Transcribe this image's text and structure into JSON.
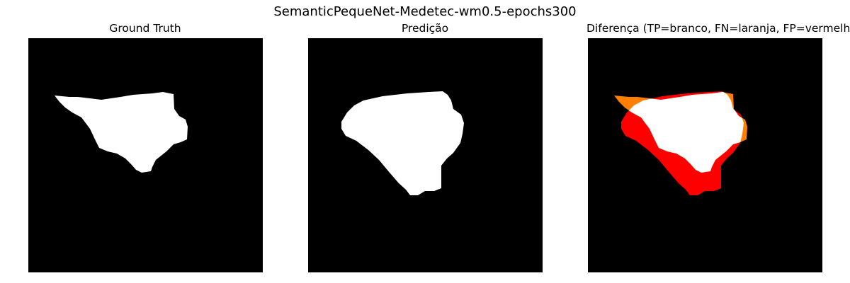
{
  "figure": {
    "title": "SemanticPequeNet-Medetec-wm0.5-epochs300"
  },
  "panels": [
    {
      "title": "Ground Truth"
    },
    {
      "title": "Predição"
    },
    {
      "title": "Diferença (TP=branco, FN=laranja, FP=vermelho)"
    }
  ],
  "colors": {
    "background": "#000000",
    "mask": "#ffffff",
    "true_positive": "#ffffff",
    "false_negative": "#ff8000",
    "false_positive": "#ff0000"
  }
}
